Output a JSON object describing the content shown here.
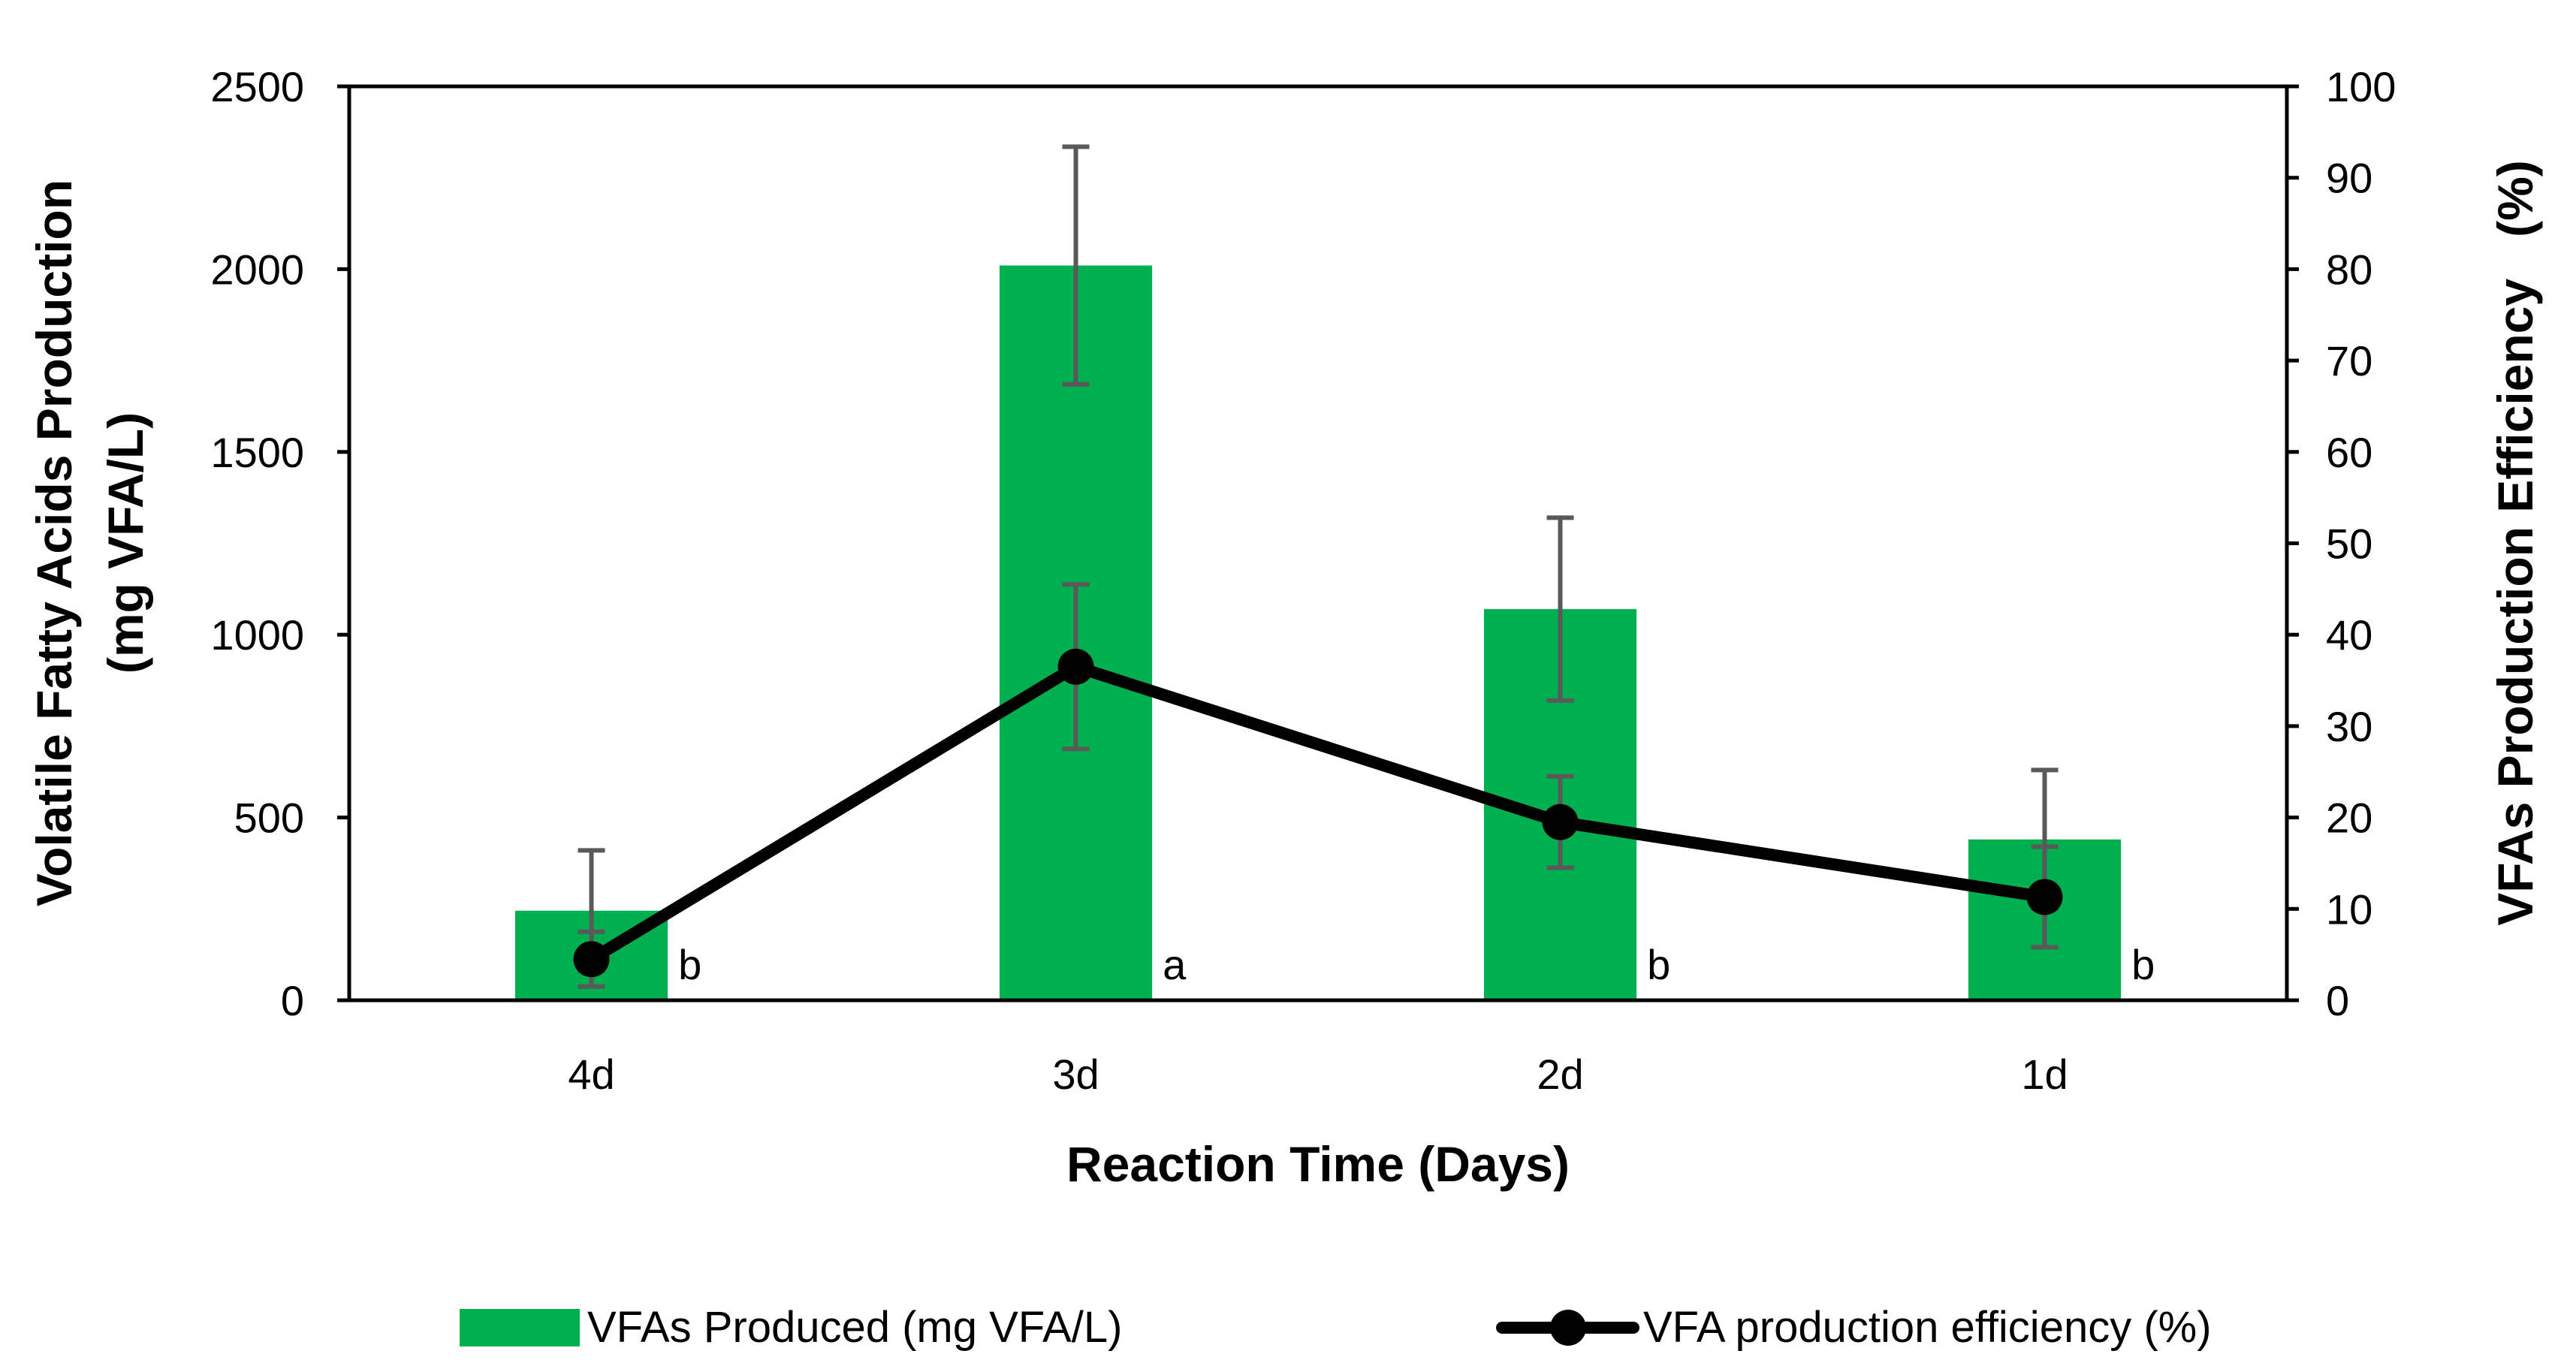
{
  "chart_data": {
    "type": "bar+line",
    "categories": [
      "4d",
      "3d",
      "2d",
      "1d"
    ],
    "bar_series": {
      "name": "VFAs Produced (mg VFA/L)",
      "values": [
        245,
        2010,
        1070,
        440
      ],
      "errors": [
        165,
        325,
        250,
        190
      ],
      "color": "#00b050",
      "error_color": "#595959"
    },
    "line_series": {
      "name": "VFA production efficiency (%)",
      "values": [
        4.5,
        36.5,
        19.5,
        11.3
      ],
      "errors": [
        3.0,
        9.0,
        5.0,
        5.5
      ],
      "color": "#000000"
    },
    "significance_letters": [
      "b",
      "a",
      "b",
      "b"
    ],
    "left_axis": {
      "title_line1": "Volatile Fatty Acids Production",
      "title_line2": "(mg VFA/L)",
      "ylim": [
        0,
        2500
      ],
      "ticks": [
        "0",
        "500",
        "1000",
        "1500",
        "2000",
        "2500"
      ]
    },
    "right_axis": {
      "title": "VFAs Production Efficiency   (%)",
      "ylim": [
        0,
        100
      ],
      "ticks": [
        "0",
        "10",
        "20",
        "30",
        "40",
        "50",
        "60",
        "70",
        "80",
        "90",
        "100"
      ]
    },
    "xlabel": "Reaction Time (Days)",
    "grid": false,
    "legend_position": "bottom"
  }
}
